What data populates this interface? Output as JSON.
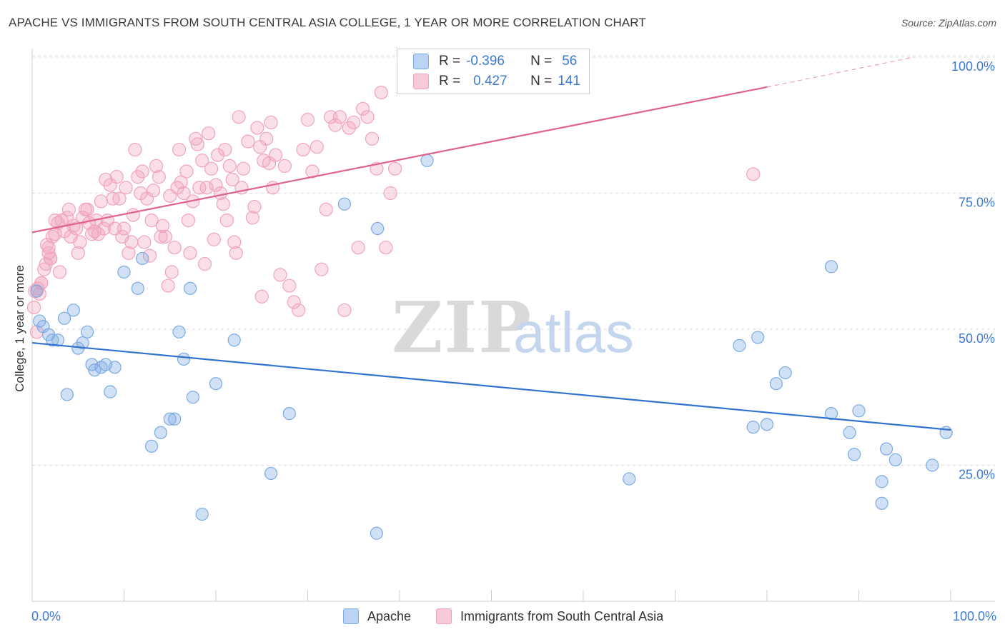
{
  "title": "APACHE VS IMMIGRANTS FROM SOUTH CENTRAL ASIA COLLEGE, 1 YEAR OR MORE CORRELATION CHART",
  "source": "Source: ZipAtlas.com",
  "watermark": {
    "zip": "ZIP",
    "atlas": "atlas"
  },
  "legend": {
    "apache": {
      "r_label": "R =",
      "r_value": "-0.396",
      "n_label": "N =",
      "n_value": "56"
    },
    "immigrants": {
      "r_label": "R =",
      "r_value": "0.427",
      "n_label": "N =",
      "n_value": "141"
    }
  },
  "bottom_legend": {
    "apache": "Apache",
    "immigrants": "Immigrants from South Central Asia"
  },
  "x_axis": {
    "left_label": "0.0%",
    "right_label": "100.0%"
  },
  "chart_data": {
    "type": "scatter",
    "title": "APACHE VS IMMIGRANTS FROM SOUTH CENTRAL ASIA COLLEGE, 1 YEAR OR MORE CORRELATION CHART",
    "xlabel": "",
    "ylabel": "College, 1 year or more",
    "xlim": [
      0,
      100
    ],
    "ylim": [
      0,
      100
    ],
    "y_ticks": [
      25,
      50,
      75,
      100
    ],
    "y_tick_labels": [
      "25.0%",
      "50.0%",
      "75.0%",
      "100.0%"
    ],
    "x_tick_labels": [
      "0.0%",
      "100.0%"
    ],
    "grid": true,
    "legend_position": "top-center",
    "colors": {
      "apache": "#7aaae3",
      "apache_line": "#2f72d0",
      "immigrants": "#f0a3bd",
      "immigrants_line": "#e0628a"
    },
    "series": [
      {
        "name": "Apache",
        "r": -0.396,
        "n": 56,
        "trend": {
          "x": [
            0,
            100
          ],
          "y": [
            47.5,
            31.5
          ]
        },
        "points": [
          [
            0.5,
            57
          ],
          [
            0.8,
            51.5
          ],
          [
            1.2,
            50.5
          ],
          [
            1.8,
            49
          ],
          [
            2.2,
            48
          ],
          [
            2.8,
            48
          ],
          [
            3.8,
            38
          ],
          [
            4.5,
            53.5
          ],
          [
            3.5,
            52
          ],
          [
            5,
            46.5
          ],
          [
            5.5,
            47.5
          ],
          [
            6,
            49.5
          ],
          [
            6.5,
            43.5
          ],
          [
            6.8,
            42.5
          ],
          [
            7.5,
            43
          ],
          [
            8,
            43.5
          ],
          [
            8.5,
            38.5
          ],
          [
            9,
            43
          ],
          [
            10,
            60.5
          ],
          [
            11.5,
            57.5
          ],
          [
            12,
            63
          ],
          [
            13,
            28.5
          ],
          [
            14,
            31
          ],
          [
            15,
            33.5
          ],
          [
            15.5,
            33.5
          ],
          [
            16,
            49.5
          ],
          [
            16.5,
            44.5
          ],
          [
            17.2,
            57.5
          ],
          [
            17.5,
            37.5
          ],
          [
            18.5,
            16
          ],
          [
            20,
            40
          ],
          [
            22,
            48
          ],
          [
            26,
            23.5
          ],
          [
            28,
            34.5
          ],
          [
            34,
            73
          ],
          [
            37.5,
            12.5
          ],
          [
            37.6,
            68.5
          ],
          [
            43,
            81
          ],
          [
            65,
            22.5
          ],
          [
            77,
            47
          ],
          [
            78.5,
            32
          ],
          [
            79,
            48.5
          ],
          [
            80,
            32.5
          ],
          [
            81,
            40
          ],
          [
            82,
            42
          ],
          [
            87,
            61.5
          ],
          [
            87,
            34.5
          ],
          [
            89,
            31
          ],
          [
            89.5,
            27
          ],
          [
            90,
            35
          ],
          [
            92.5,
            22
          ],
          [
            92.5,
            18
          ],
          [
            93,
            28
          ],
          [
            94,
            26
          ],
          [
            98,
            25
          ],
          [
            99.5,
            31
          ]
        ]
      },
      {
        "name": "Immigrants from South Central Asia",
        "r": 0.427,
        "n": 141,
        "trend": {
          "x": [
            0,
            80
          ],
          "y": [
            67.8,
            94.5
          ]
        },
        "trend_dashed": {
          "x": [
            80,
            96
          ],
          "y": [
            94.5,
            100
          ]
        },
        "points": [
          [
            0.2,
            54
          ],
          [
            0.3,
            57
          ],
          [
            0.5,
            49.5
          ],
          [
            0.8,
            56.5
          ],
          [
            1,
            58.5
          ],
          [
            1.3,
            61
          ],
          [
            1.5,
            62
          ],
          [
            1.6,
            65.5
          ],
          [
            1.8,
            64
          ],
          [
            2,
            63
          ],
          [
            2.2,
            67
          ],
          [
            2.5,
            67.5
          ],
          [
            2.8,
            69.5
          ],
          [
            3,
            60.5
          ],
          [
            3.2,
            70
          ],
          [
            3.5,
            68
          ],
          [
            3.8,
            70.5
          ],
          [
            4,
            72
          ],
          [
            4.2,
            67
          ],
          [
            4.5,
            69
          ],
          [
            4.8,
            68.5
          ],
          [
            5,
            64
          ],
          [
            5.2,
            66
          ],
          [
            5.5,
            70.5
          ],
          [
            5.8,
            72
          ],
          [
            6,
            72
          ],
          [
            6.2,
            69.5
          ],
          [
            6.5,
            67.5
          ],
          [
            6.8,
            68
          ],
          [
            7,
            70
          ],
          [
            7.2,
            67.5
          ],
          [
            7.5,
            73.5
          ],
          [
            7.8,
            68.5
          ],
          [
            8,
            77.5
          ],
          [
            8.2,
            70
          ],
          [
            8.5,
            76.5
          ],
          [
            8.8,
            74
          ],
          [
            9,
            68.5
          ],
          [
            9.2,
            78
          ],
          [
            9.5,
            74
          ],
          [
            9.8,
            67
          ],
          [
            10,
            68.5
          ],
          [
            10.2,
            76
          ],
          [
            10.5,
            64
          ],
          [
            10.8,
            66
          ],
          [
            11,
            71
          ],
          [
            11.2,
            83
          ],
          [
            11.5,
            78
          ],
          [
            11.8,
            75
          ],
          [
            12,
            79
          ],
          [
            12.2,
            66
          ],
          [
            12.5,
            74
          ],
          [
            12.8,
            63.5
          ],
          [
            13,
            70
          ],
          [
            13.2,
            75.5
          ],
          [
            13.5,
            80
          ],
          [
            13.8,
            78
          ],
          [
            14,
            67
          ],
          [
            14.2,
            69
          ],
          [
            14.5,
            67
          ],
          [
            14.8,
            58
          ],
          [
            15,
            74.5
          ],
          [
            15.2,
            60.5
          ],
          [
            15.5,
            65
          ],
          [
            15.8,
            76
          ],
          [
            16,
            83
          ],
          [
            16.2,
            77
          ],
          [
            16.5,
            75
          ],
          [
            16.8,
            79
          ],
          [
            17,
            70
          ],
          [
            17.2,
            64
          ],
          [
            17.5,
            73.5
          ],
          [
            17.8,
            85
          ],
          [
            18,
            84
          ],
          [
            18.2,
            76
          ],
          [
            18.5,
            81
          ],
          [
            18.8,
            62
          ],
          [
            19,
            76
          ],
          [
            19.2,
            86
          ],
          [
            19.5,
            79.5
          ],
          [
            19.8,
            66.5
          ],
          [
            20,
            76.5
          ],
          [
            20.2,
            82
          ],
          [
            20.5,
            75
          ],
          [
            20.8,
            73
          ],
          [
            21,
            83
          ],
          [
            21.2,
            70
          ],
          [
            21.5,
            80
          ],
          [
            21.8,
            77.5
          ],
          [
            22,
            66
          ],
          [
            22.2,
            64
          ],
          [
            22.5,
            89
          ],
          [
            22.8,
            76
          ],
          [
            23,
            79.5
          ],
          [
            23.5,
            84.5
          ],
          [
            24,
            70.5
          ],
          [
            24.2,
            72.5
          ],
          [
            24.5,
            87
          ],
          [
            24.8,
            83.5
          ],
          [
            25,
            56
          ],
          [
            25.2,
            81
          ],
          [
            25.5,
            85
          ],
          [
            25.8,
            80.5
          ],
          [
            26,
            88
          ],
          [
            26.2,
            76
          ],
          [
            26.5,
            82
          ],
          [
            27,
            60
          ],
          [
            27.5,
            80
          ],
          [
            28,
            58
          ],
          [
            28.5,
            55
          ],
          [
            29,
            53.5
          ],
          [
            29.5,
            83
          ],
          [
            30,
            88.5
          ],
          [
            30.5,
            79
          ],
          [
            31,
            83.5
          ],
          [
            31.5,
            61
          ],
          [
            32,
            72
          ],
          [
            32.5,
            89
          ],
          [
            33,
            87.5
          ],
          [
            33.5,
            89
          ],
          [
            34,
            53.5
          ],
          [
            34.5,
            87
          ],
          [
            35,
            88
          ],
          [
            35.5,
            65
          ],
          [
            36,
            90.5
          ],
          [
            36.5,
            89
          ],
          [
            37,
            85
          ],
          [
            37.5,
            79.5
          ],
          [
            38,
            93.5
          ],
          [
            38.5,
            65
          ],
          [
            39,
            75
          ],
          [
            39.5,
            79.5
          ],
          [
            78.5,
            78.5
          ],
          [
            1,
            58.5
          ],
          [
            2,
            63
          ],
          [
            0.6,
            57.5
          ],
          [
            1.8,
            65
          ],
          [
            2.5,
            70
          ]
        ]
      }
    ]
  }
}
